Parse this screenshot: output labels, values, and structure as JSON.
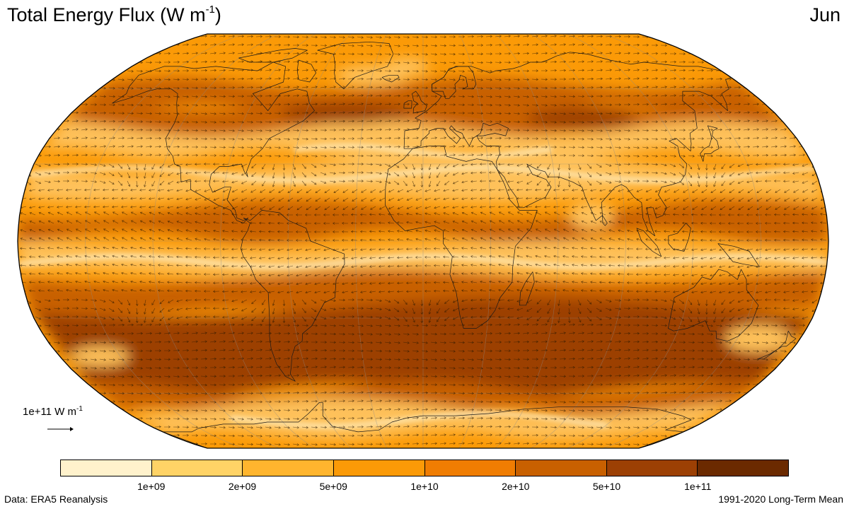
{
  "title": {
    "text": "Total Energy Flux (W m",
    "exp": "-1",
    "close": ")"
  },
  "month": "Jun",
  "reference_vector": {
    "label": "1e+11 W m",
    "exp": "-1"
  },
  "colorbar": {
    "colors": [
      "#fff2cc",
      "#ffd366",
      "#ffb52e",
      "#fb9a07",
      "#f07d02",
      "#c86000",
      "#9c4004",
      "#6b2a00"
    ],
    "ticks": [
      "1e+09",
      "2e+09",
      "5e+09",
      "1e+10",
      "2e+10",
      "5e+10",
      "1e+11"
    ]
  },
  "footer": {
    "data_source": "Data: ERA5 Reanalysis",
    "period": "1991-2020 Long-Term Mean"
  },
  "map": {
    "projection": "Robinson",
    "field": "total energy flux magnitude",
    "overlays": [
      "flux vectors",
      "coastlines",
      "graticule"
    ],
    "colors": {
      "background": "#fb9a07",
      "light_band": "#fec15a",
      "highlight": "#fff2cc",
      "dark_band": "#c86000",
      "darker_band": "#9c4004",
      "darkest": "#7a3200",
      "coastline": "#1a1a1a",
      "vector": "#2a1800"
    }
  }
}
